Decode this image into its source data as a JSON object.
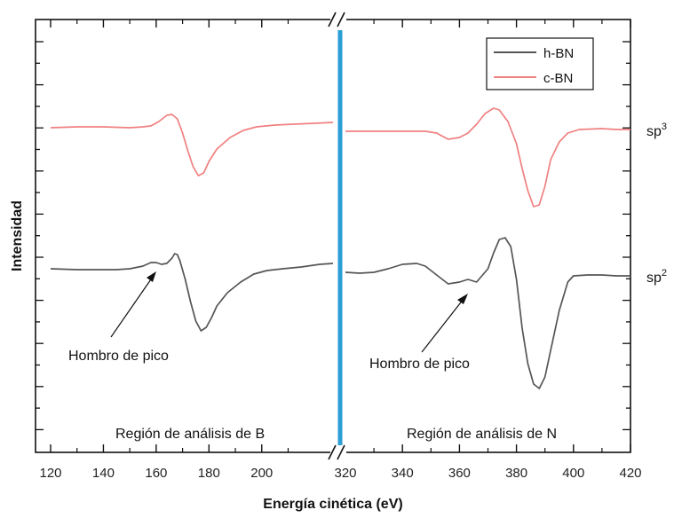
{
  "chart_data": {
    "type": "line",
    "title": "",
    "xlabel": "Energía cinética (eV)",
    "ylabel": "Intensidad",
    "grid": false,
    "legend_position": "top-right",
    "x_ticks_left": [
      120,
      140,
      160,
      180,
      200
    ],
    "x_ticks_right": [
      320,
      340,
      360,
      380,
      400,
      420
    ],
    "x_range_left": [
      120,
      227
    ],
    "x_range_right": [
      320,
      420
    ],
    "axis_break": true,
    "colors": {
      "h-BN": "#555555",
      "c-BN": "#f08080",
      "divider": "#2a9fd6"
    },
    "series": [
      {
        "name": "h-BN",
        "left": [
          [
            120,
            303
          ],
          [
            130,
            304
          ],
          [
            140,
            304
          ],
          [
            145,
            304
          ],
          [
            150,
            303
          ],
          [
            155,
            300
          ],
          [
            158,
            296
          ],
          [
            160,
            296
          ],
          [
            162,
            298
          ],
          [
            164,
            297
          ],
          [
            166,
            291
          ],
          [
            167,
            286
          ],
          [
            168,
            287
          ],
          [
            169,
            294
          ],
          [
            171,
            315
          ],
          [
            173,
            340
          ],
          [
            175,
            362
          ],
          [
            177,
            373
          ],
          [
            179,
            369
          ],
          [
            181,
            358
          ],
          [
            183,
            345
          ],
          [
            187,
            330
          ],
          [
            192,
            318
          ],
          [
            197,
            309
          ],
          [
            202,
            305
          ],
          [
            208,
            303
          ],
          [
            215,
            301
          ],
          [
            222,
            298
          ],
          [
            227,
            297
          ]
        ],
        "right": [
          [
            320,
            307
          ],
          [
            325,
            308
          ],
          [
            330,
            307
          ],
          [
            335,
            303
          ],
          [
            340,
            298
          ],
          [
            345,
            297
          ],
          [
            348,
            300
          ],
          [
            352,
            310
          ],
          [
            356,
            320
          ],
          [
            360,
            318
          ],
          [
            363,
            315
          ],
          [
            366,
            318
          ],
          [
            370,
            303
          ],
          [
            372,
            285
          ],
          [
            374,
            270
          ],
          [
            376,
            268
          ],
          [
            378,
            278
          ],
          [
            380,
            315
          ],
          [
            382,
            370
          ],
          [
            384,
            410
          ],
          [
            386,
            433
          ],
          [
            388,
            438
          ],
          [
            390,
            425
          ],
          [
            392,
            395
          ],
          [
            395,
            350
          ],
          [
            398,
            318
          ],
          [
            400,
            311
          ],
          [
            405,
            310
          ],
          [
            410,
            310
          ],
          [
            415,
            311
          ],
          [
            420,
            311
          ]
        ]
      },
      {
        "name": "c-BN",
        "left": [
          [
            120,
            144
          ],
          [
            130,
            143
          ],
          [
            140,
            143
          ],
          [
            150,
            144
          ],
          [
            155,
            143
          ],
          [
            158,
            142
          ],
          [
            161,
            137
          ],
          [
            164,
            130
          ],
          [
            166,
            129
          ],
          [
            168,
            134
          ],
          [
            170,
            150
          ],
          [
            172,
            170
          ],
          [
            174,
            188
          ],
          [
            176,
            198
          ],
          [
            178,
            195
          ],
          [
            180,
            182
          ],
          [
            183,
            168
          ],
          [
            188,
            155
          ],
          [
            193,
            147
          ],
          [
            198,
            143
          ],
          [
            205,
            141
          ],
          [
            212,
            140
          ],
          [
            220,
            139
          ],
          [
            227,
            138
          ]
        ],
        "right": [
          [
            320,
            148
          ],
          [
            330,
            148
          ],
          [
            340,
            148
          ],
          [
            348,
            148
          ],
          [
            352,
            150
          ],
          [
            356,
            157
          ],
          [
            360,
            155
          ],
          [
            363,
            150
          ],
          [
            366,
            140
          ],
          [
            369,
            128
          ],
          [
            372,
            122
          ],
          [
            374,
            124
          ],
          [
            377,
            137
          ],
          [
            380,
            162
          ],
          [
            382,
            190
          ],
          [
            384,
            215
          ],
          [
            386,
            233
          ],
          [
            388,
            231
          ],
          [
            390,
            210
          ],
          [
            392,
            180
          ],
          [
            395,
            160
          ],
          [
            398,
            150
          ],
          [
            402,
            146
          ],
          [
            410,
            145
          ],
          [
            415,
            146
          ],
          [
            420,
            146
          ]
        ]
      }
    ],
    "annotations": [
      {
        "text": "Hombro de pico",
        "region": "left",
        "target_x": 157
      },
      {
        "text": "Hombro de pico",
        "region": "right",
        "target_x": 363
      }
    ],
    "region_labels": [
      "Región de análisis de B",
      "Región de análisis de N"
    ],
    "right_labels": [
      {
        "base": "sp",
        "sup": "3",
        "series": "c-BN"
      },
      {
        "base": "sp",
        "sup": "2",
        "series": "h-BN"
      }
    ]
  }
}
